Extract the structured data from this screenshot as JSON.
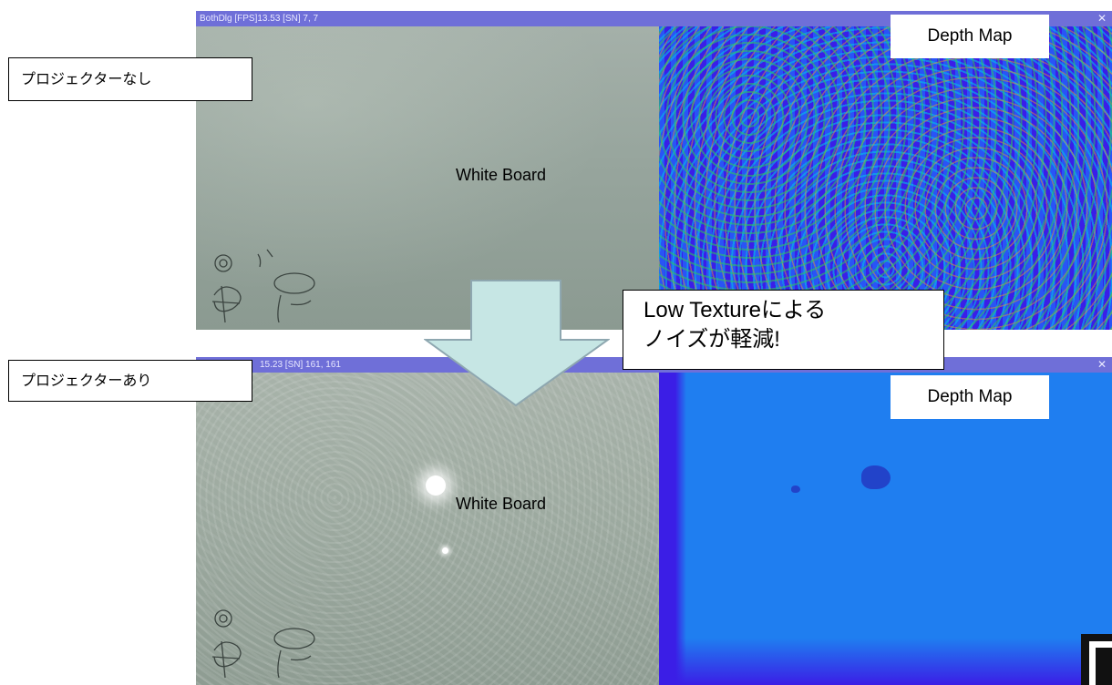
{
  "top_window": {
    "title": "BothDlg    [FPS]13.53    [SN] 7, 7",
    "camera_label": "White Board",
    "depth_label": "Depth Map"
  },
  "bottom_window": {
    "title": "15.23    [SN] 161, 161",
    "camera_label": "White Board",
    "depth_label": "Depth Map"
  },
  "labels": {
    "without_projector": "プロジェクターなし",
    "with_projector": "プロジェクターあり"
  },
  "callout": {
    "line1": "Low Textureによる",
    "line2": "ノイズが軽減!"
  },
  "icons": {
    "close": "close-icon",
    "arrow": "down-arrow-icon"
  },
  "colors": {
    "titlebar": "#6f6fd8",
    "arrow_fill": "#c6e6e4",
    "arrow_stroke": "#8ea7b0",
    "depth_blue": "#1f7ef0",
    "depth_purple": "#3a1ee8"
  }
}
